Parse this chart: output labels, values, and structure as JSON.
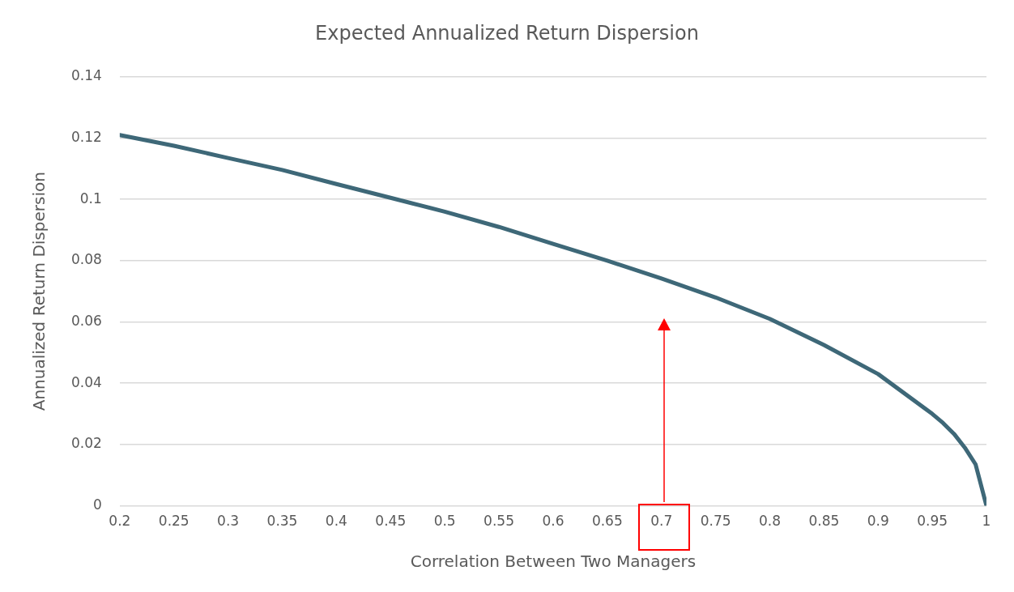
{
  "chart_data": {
    "type": "line",
    "title": "Expected Annualized Return Dispersion",
    "xlabel": "Correlation Between Two Managers",
    "ylabel": "Annualized Return Dispersion",
    "x": [
      0.2,
      0.25,
      0.3,
      0.35,
      0.4,
      0.45,
      0.5,
      0.55,
      0.6,
      0.65,
      0.7,
      0.75,
      0.8,
      0.85,
      0.9,
      0.95,
      0.96,
      0.97,
      0.98,
      0.99,
      1
    ],
    "series": [
      {
        "color": "#3e6878",
        "values": [
          0.121,
          0.1175,
          0.1135,
          0.1096,
          0.105,
          0.1005,
          0.096,
          0.091,
          0.0855,
          0.08,
          0.0742,
          0.068,
          0.061,
          0.0525,
          0.043,
          0.03,
          0.027,
          0.0235,
          0.019,
          0.0135,
          0
        ]
      }
    ],
    "xlim": [
      0.2,
      1
    ],
    "xticks": [
      0.2,
      0.25,
      0.3,
      0.35,
      0.4,
      0.45,
      0.5,
      0.55,
      0.6,
      0.65,
      0.7,
      0.75,
      0.8,
      0.85,
      0.9,
      0.95,
      1
    ],
    "ylim": [
      0,
      0.14
    ],
    "yticks": [
      0,
      0.02,
      0.04,
      0.06,
      0.08,
      0.1,
      0.12,
      0.14
    ],
    "grid": "y",
    "legend": false,
    "marker": "none",
    "line_style": "solid"
  }
}
